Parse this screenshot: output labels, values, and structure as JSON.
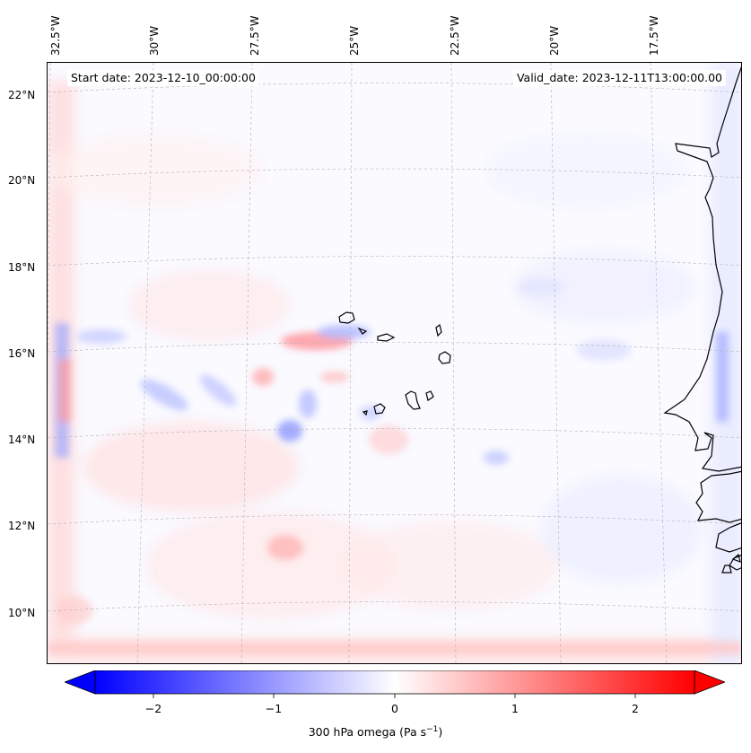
{
  "map": {
    "start_date": "Start date: 2023-12-10_00:00:00",
    "valid_date": "Valid_date: 2023-12-11T13:00:00.00",
    "lon_labels": [
      "32.5°W",
      "30°W",
      "27.5°W",
      "25°W",
      "22.5°W",
      "20°W",
      "17.5°W"
    ],
    "lat_labels": [
      "22°N",
      "20°N",
      "18°N",
      "16°N",
      "14°N",
      "12°N",
      "10°N"
    ],
    "coastline_color": "#000000",
    "gridline_color": "#b0b0b0"
  },
  "colorbar": {
    "label_prefix": "300 hPa omega (Pa s",
    "label_exponent": "−1",
    "label_suffix": ")",
    "ticks": [
      "−2",
      "−1",
      "0",
      "1",
      "2"
    ],
    "tick_values": [
      -2,
      -1,
      0,
      1,
      2
    ],
    "range": [
      -2.6,
      2.6
    ],
    "colormap": "bwr",
    "min_color": "#0000ff",
    "mid_color": "#ffffff",
    "max_color": "#ff0000"
  }
}
